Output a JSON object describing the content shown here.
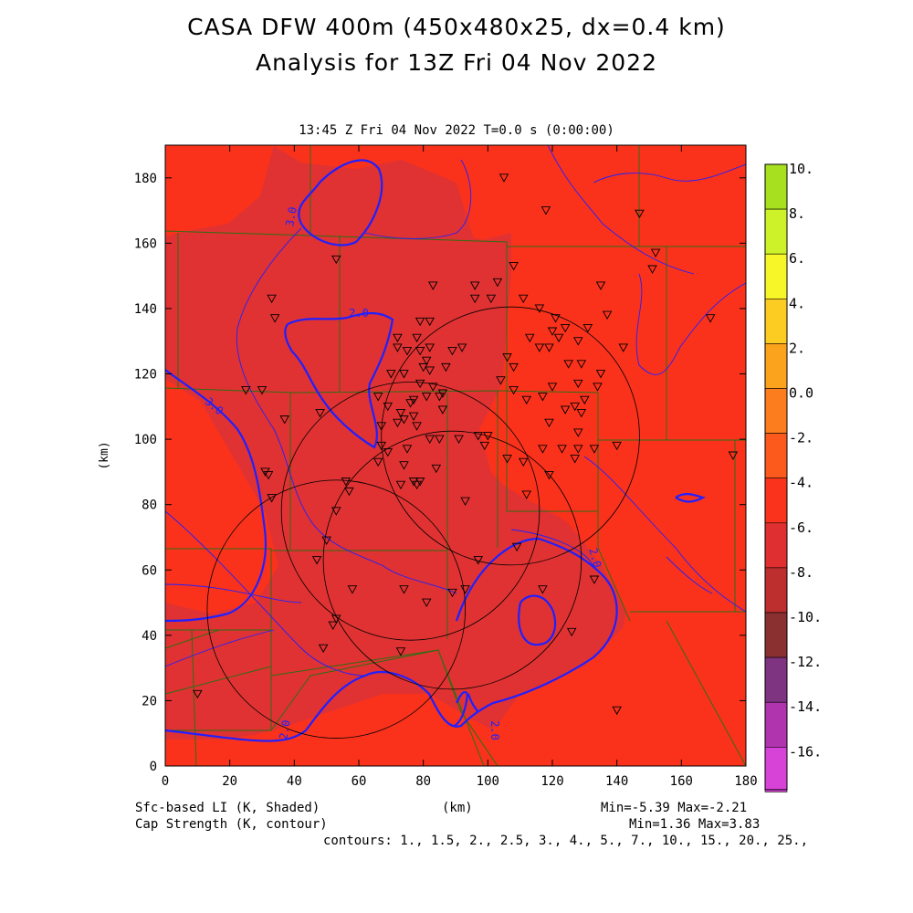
{
  "title_line1": "CASA DFW 400m (450x480x25, dx=0.4 km)",
  "title_line2": "Analysis for 13Z Fri 04 Nov 2022",
  "subtitle": "13:45 Z Fri 04 Nov 2022   T=0.0 s (0:00:00)",
  "footer": {
    "shaded_label": "Sfc-based LI (K, Shaded)",
    "contour_label": "Cap Strength (K, contour)",
    "xunit": "(km)",
    "shaded_minmax": "Min=-5.39 Max=-2.21",
    "contour_minmax": "Min=1.36 Max=3.83",
    "contours": "contours: 1., 1.5, 2., 2.5, 3., 4., 5., 7., 10., 15., 20., 25.,"
  },
  "chart_data": {
    "type": "heatmap",
    "xlabel": "",
    "ylabel": "(km)",
    "xlim": [
      0,
      180
    ],
    "ylim": [
      0,
      190
    ],
    "xticks": [
      0,
      20,
      40,
      60,
      80,
      100,
      120,
      140,
      160,
      180
    ],
    "yticks": [
      0,
      20,
      40,
      60,
      80,
      100,
      120,
      140,
      160,
      180
    ],
    "colorbar": {
      "ticks": [
        "10.",
        "8.",
        "6.",
        "4.",
        "2.",
        "0.0",
        "-2.",
        "-4.",
        "-6.",
        "-8.",
        "-10.",
        "-12.",
        "-14.",
        "-16."
      ],
      "colors": [
        "#a6e01e",
        "#cdf22a",
        "#f6f628",
        "#fccc22",
        "#fca31e",
        "#fb7d1e",
        "#fb5a1c",
        "#fa331c",
        "#e02f30",
        "#bd2f2f",
        "#8a3030",
        "#7f3482",
        "#b034ad",
        "#d742d7"
      ]
    },
    "field_colors": {
      "region_high": "#fa321c",
      "region_low": "#e03232",
      "contour": "#2020ff",
      "county_lines": "#2d6e14"
    },
    "contour_labels": [
      "3.0",
      "2.0",
      "3.0",
      "2.0",
      "2.0",
      "2.0"
    ],
    "radar_rings": [
      {
        "cx": 107,
        "cy": 101,
        "r": 40
      },
      {
        "cx": 76,
        "cy": 78,
        "r": 40
      },
      {
        "cx": 89,
        "cy": 63,
        "r": 40
      },
      {
        "cx": 53,
        "cy": 48,
        "r": 40
      }
    ],
    "stations": [
      [
        33,
        143
      ],
      [
        34,
        137
      ],
      [
        30,
        115
      ],
      [
        37,
        106
      ],
      [
        25,
        115
      ],
      [
        31,
        90
      ],
      [
        32,
        89
      ],
      [
        33,
        82
      ],
      [
        48,
        108
      ],
      [
        53,
        155
      ],
      [
        47,
        63
      ],
      [
        56,
        87
      ],
      [
        57,
        84
      ],
      [
        53,
        78
      ],
      [
        50,
        69
      ],
      [
        58,
        54
      ],
      [
        53,
        45
      ],
      [
        52,
        43
      ],
      [
        49,
        36
      ],
      [
        73,
        35
      ],
      [
        74,
        54
      ],
      [
        81,
        50
      ],
      [
        89,
        53
      ],
      [
        93,
        54
      ],
      [
        97,
        63
      ],
      [
        93,
        81
      ],
      [
        111,
        93
      ],
      [
        117,
        97
      ],
      [
        123,
        97
      ],
      [
        128,
        97
      ],
      [
        140,
        98
      ],
      [
        128,
        102
      ],
      [
        127,
        94
      ],
      [
        119,
        89
      ],
      [
        91,
        100
      ],
      [
        85,
        100
      ],
      [
        74,
        92
      ],
      [
        74,
        106
      ],
      [
        77,
        107
      ],
      [
        72,
        105
      ],
      [
        75,
        127
      ],
      [
        82,
        128
      ],
      [
        89,
        127
      ],
      [
        85,
        113
      ],
      [
        86,
        109
      ],
      [
        82,
        121
      ],
      [
        83,
        116
      ],
      [
        79,
        127
      ],
      [
        77,
        112
      ],
      [
        78,
        104
      ],
      [
        87,
        122
      ],
      [
        92,
        128
      ],
      [
        97,
        101
      ],
      [
        99,
        98
      ],
      [
        112,
        83
      ],
      [
        109,
        67
      ],
      [
        117,
        54
      ],
      [
        126,
        41
      ],
      [
        133,
        57
      ],
      [
        142,
        128
      ],
      [
        135,
        147
      ],
      [
        137,
        138
      ],
      [
        134,
        116
      ],
      [
        135,
        120
      ],
      [
        128,
        130
      ],
      [
        129,
        123
      ],
      [
        130,
        112
      ],
      [
        124,
        109
      ],
      [
        129,
        108
      ],
      [
        120,
        116
      ],
      [
        119,
        128
      ],
      [
        121,
        137
      ],
      [
        124,
        134
      ],
      [
        120,
        133
      ],
      [
        122,
        131
      ],
      [
        116,
        128
      ],
      [
        116,
        140
      ],
      [
        113,
        131
      ],
      [
        111,
        143
      ],
      [
        103,
        148
      ],
      [
        108,
        153
      ],
      [
        101,
        143
      ],
      [
        118,
        170
      ],
      [
        128,
        117
      ],
      [
        133,
        97
      ],
      [
        131,
        134
      ],
      [
        125,
        123
      ],
      [
        127,
        110
      ],
      [
        117,
        113
      ],
      [
        106,
        125
      ],
      [
        112,
        112
      ],
      [
        119,
        105
      ],
      [
        108,
        115
      ],
      [
        108,
        122
      ],
      [
        104,
        118
      ],
      [
        147,
        169
      ],
      [
        152,
        157
      ],
      [
        169,
        137
      ],
      [
        176,
        95
      ],
      [
        151,
        152
      ],
      [
        140,
        17
      ],
      [
        10,
        22
      ],
      [
        79,
        136
      ],
      [
        82,
        136
      ],
      [
        72,
        128
      ],
      [
        82,
        100
      ],
      [
        75,
        97
      ],
      [
        73,
        108
      ],
      [
        67,
        104
      ],
      [
        66,
        113
      ],
      [
        69,
        110
      ],
      [
        70,
        120
      ],
      [
        74,
        120
      ],
      [
        79,
        117
      ],
      [
        80,
        122
      ],
      [
        81,
        124
      ],
      [
        81,
        113
      ],
      [
        76,
        111
      ],
      [
        77,
        87
      ],
      [
        79,
        87
      ],
      [
        78,
        86
      ],
      [
        73,
        86
      ],
      [
        66,
        93
      ],
      [
        67,
        98
      ],
      [
        69,
        96
      ],
      [
        84,
        91
      ],
      [
        86,
        114
      ],
      [
        72,
        131
      ],
      [
        78,
        131
      ],
      [
        83,
        147
      ],
      [
        96,
        147
      ],
      [
        96,
        143
      ],
      [
        100,
        101
      ],
      [
        106,
        94
      ],
      [
        105,
        180
      ]
    ]
  }
}
